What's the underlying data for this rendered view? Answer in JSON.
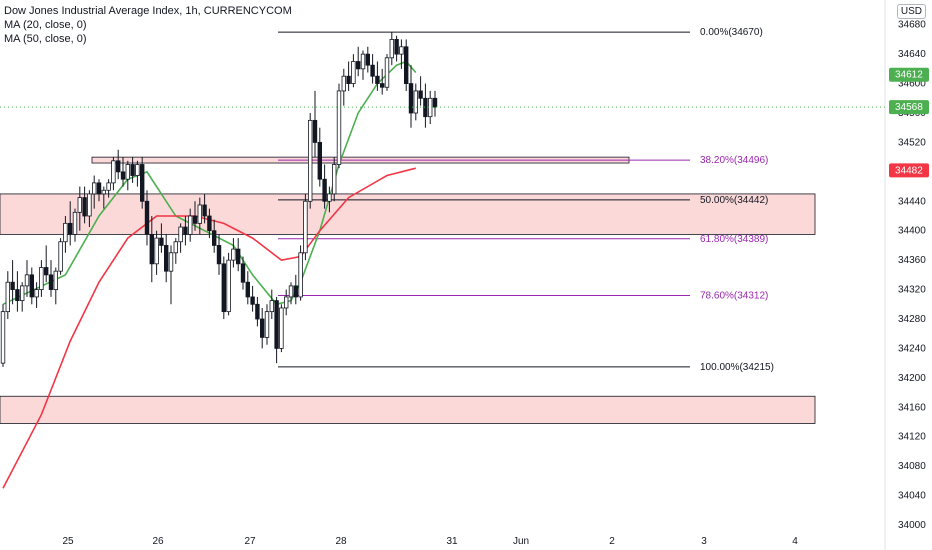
{
  "legend": {
    "title": "Dow Jones Industrial Average Index, 1h, CURRENCYCOM",
    "ma20": "MA (20, close, 0)",
    "ma50": "MA (50, close, 0)"
  },
  "currency": "USD",
  "colors": {
    "up": "#26a69a",
    "down": "#ef5350",
    "ma20": "#4caf50",
    "ma50": "#f23645",
    "zone_fill": "#fcd9d9",
    "fib_black": "#131722",
    "fib_purple": "#9c27b0",
    "last_price": "#4caf50",
    "ma50_tag": "#f23645"
  },
  "chart_data": {
    "type": "candlestick",
    "y_axis": {
      "min": 34000,
      "max": 34700,
      "ticks": [
        34000,
        34040,
        34080,
        34120,
        34160,
        34200,
        34240,
        34280,
        34320,
        34360,
        34400,
        34440,
        34480,
        34520,
        34560,
        34600,
        34640,
        34680
      ]
    },
    "x_axis": {
      "ticks": [
        "25",
        "26",
        "27",
        "28",
        "31",
        "Jun",
        "2",
        "3",
        "4"
      ]
    },
    "price_tags": [
      {
        "value": 34612,
        "label": "34612",
        "color": "#4caf50"
      },
      {
        "value": 34568,
        "label": "34568",
        "color": "#4caf50"
      },
      {
        "value": 34482,
        "label": "34482",
        "color": "#f23645"
      }
    ],
    "last_price": 34568,
    "fib_levels": [
      {
        "label": "0.00%(34670)",
        "value": 34670,
        "color": "#131722"
      },
      {
        "label": "38.20%(34496)",
        "value": 34496,
        "color": "#9c27b0"
      },
      {
        "label": "50.00%(34442)",
        "value": 34442,
        "color": "#131722"
      },
      {
        "label": "61.80%(34389)",
        "value": 34389,
        "color": "#9c27b0"
      },
      {
        "label": "78.60%(34312)",
        "value": 34312,
        "color": "#9c27b0"
      },
      {
        "label": "100.00%(34215)",
        "value": 34215,
        "color": "#131722"
      }
    ],
    "zones": [
      {
        "top": 34500,
        "bottom": 34492
      },
      {
        "top": 34450,
        "bottom": 34395
      },
      {
        "top": 34175,
        "bottom": 34138
      }
    ],
    "candles": [
      [
        34220,
        34300,
        34215,
        34290
      ],
      [
        34290,
        34345,
        34280,
        34330
      ],
      [
        34330,
        34360,
        34300,
        34320
      ],
      [
        34320,
        34345,
        34290,
        34305
      ],
      [
        34305,
        34330,
        34290,
        34325
      ],
      [
        34325,
        34360,
        34310,
        34340
      ],
      [
        34340,
        34350,
        34300,
        34310
      ],
      [
        34310,
        34330,
        34295,
        34320
      ],
      [
        34320,
        34360,
        34310,
        34350
      ],
      [
        34350,
        34380,
        34330,
        34340
      ],
      [
        34340,
        34360,
        34310,
        34320
      ],
      [
        34320,
        34350,
        34300,
        34345
      ],
      [
        34345,
        34390,
        34340,
        34385
      ],
      [
        34385,
        34420,
        34370,
        34410
      ],
      [
        34410,
        34440,
        34380,
        34395
      ],
      [
        34395,
        34430,
        34385,
        34425
      ],
      [
        34425,
        34460,
        34400,
        34445
      ],
      [
        34445,
        34460,
        34410,
        34420
      ],
      [
        34420,
        34455,
        34405,
        34450
      ],
      [
        34450,
        34475,
        34430,
        34465
      ],
      [
        34465,
        34470,
        34440,
        34450
      ],
      [
        34450,
        34460,
        34430,
        34455
      ],
      [
        34455,
        34470,
        34445,
        34465
      ],
      [
        34465,
        34500,
        34455,
        34495
      ],
      [
        34495,
        34510,
        34470,
        34480
      ],
      [
        34480,
        34500,
        34460,
        34470
      ],
      [
        34470,
        34495,
        34455,
        34490
      ],
      [
        34490,
        34500,
        34465,
        34475
      ],
      [
        34475,
        34495,
        34460,
        34490
      ],
      [
        34490,
        34500,
        34430,
        34440
      ],
      [
        34440,
        34455,
        34380,
        34395
      ],
      [
        34395,
        34420,
        34330,
        34355
      ],
      [
        34355,
        34400,
        34340,
        34390
      ],
      [
        34390,
        34410,
        34370,
        34380
      ],
      [
        34380,
        34395,
        34330,
        34345
      ],
      [
        34345,
        34380,
        34300,
        34370
      ],
      [
        34370,
        34390,
        34355,
        34385
      ],
      [
        34385,
        34410,
        34370,
        34405
      ],
      [
        34405,
        34420,
        34380,
        34395
      ],
      [
        34395,
        34430,
        34385,
        34420
      ],
      [
        34420,
        34440,
        34400,
        34410
      ],
      [
        34410,
        34445,
        34395,
        34435
      ],
      [
        34435,
        34450,
        34410,
        34420
      ],
      [
        34420,
        34430,
        34390,
        34400
      ],
      [
        34400,
        34415,
        34370,
        34380
      ],
      [
        34380,
        34395,
        34340,
        34355
      ],
      [
        34355,
        34365,
        34280,
        34290
      ],
      [
        34290,
        34370,
        34285,
        34360
      ],
      [
        34360,
        34390,
        34350,
        34375
      ],
      [
        34375,
        34390,
        34345,
        34355
      ],
      [
        34355,
        34365,
        34320,
        34330
      ],
      [
        34330,
        34345,
        34300,
        34310
      ],
      [
        34310,
        34325,
        34290,
        34300
      ],
      [
        34300,
        34310,
        34270,
        34280
      ],
      [
        34280,
        34295,
        34240,
        34255
      ],
      [
        34255,
        34300,
        34245,
        34290
      ],
      [
        34290,
        34320,
        34280,
        34305
      ],
      [
        34305,
        34310,
        34220,
        34240
      ],
      [
        34240,
        34300,
        34235,
        34295
      ],
      [
        34295,
        34320,
        34285,
        34310
      ],
      [
        34310,
        34330,
        34300,
        34325
      ],
      [
        34325,
        34340,
        34300,
        34310
      ],
      [
        34310,
        34380,
        34305,
        34370
      ],
      [
        34370,
        34450,
        34360,
        34440
      ],
      [
        34440,
        34560,
        34430,
        34550
      ],
      [
        34550,
        34590,
        34500,
        34520
      ],
      [
        34520,
        34540,
        34460,
        34470
      ],
      [
        34470,
        34490,
        34430,
        34440
      ],
      [
        34440,
        34460,
        34425,
        34450
      ],
      [
        34450,
        34500,
        34440,
        34490
      ],
      [
        34490,
        34600,
        34485,
        34590
      ],
      [
        34590,
        34620,
        34570,
        34610
      ],
      [
        34610,
        34630,
        34590,
        34600
      ],
      [
        34600,
        34640,
        34595,
        34630
      ],
      [
        34630,
        34650,
        34610,
        34620
      ],
      [
        34620,
        34645,
        34605,
        34640
      ],
      [
        34640,
        34650,
        34615,
        34625
      ],
      [
        34625,
        34640,
        34600,
        34610
      ],
      [
        34610,
        34630,
        34590,
        34600
      ],
      [
        34600,
        34620,
        34585,
        34595
      ],
      [
        34595,
        34640,
        34590,
        34635
      ],
      [
        34635,
        34670,
        34625,
        34660
      ],
      [
        34660,
        34665,
        34630,
        34640
      ],
      [
        34640,
        34660,
        34620,
        34650
      ],
      [
        34650,
        34660,
        34590,
        34600
      ],
      [
        34600,
        34625,
        34540,
        34560
      ],
      [
        34560,
        34600,
        34550,
        34590
      ],
      [
        34590,
        34610,
        34570,
        34580
      ],
      [
        34580,
        34600,
        34540,
        34555
      ],
      [
        34555,
        34590,
        34545,
        34580
      ],
      [
        34580,
        34590,
        34555,
        34568
      ]
    ],
    "ma20": [
      [
        0,
        34300
      ],
      [
        13,
        34340
      ],
      [
        20,
        34420
      ],
      [
        26,
        34470
      ],
      [
        30,
        34480
      ],
      [
        36,
        34420
      ],
      [
        42,
        34400
      ],
      [
        48,
        34380
      ],
      [
        52,
        34340
      ],
      [
        57,
        34300
      ],
      [
        60,
        34305
      ],
      [
        62,
        34330
      ],
      [
        66,
        34400
      ],
      [
        70,
        34490
      ],
      [
        74,
        34560
      ],
      [
        78,
        34600
      ],
      [
        82,
        34625
      ],
      [
        84,
        34630
      ],
      [
        86,
        34615
      ]
    ],
    "ma50": [
      [
        0,
        34050
      ],
      [
        8,
        34150
      ],
      [
        14,
        34250
      ],
      [
        20,
        34330
      ],
      [
        26,
        34390
      ],
      [
        32,
        34420
      ],
      [
        40,
        34420
      ],
      [
        46,
        34410
      ],
      [
        52,
        34390
      ],
      [
        58,
        34360
      ],
      [
        62,
        34365
      ],
      [
        66,
        34400
      ],
      [
        72,
        34445
      ],
      [
        80,
        34475
      ],
      [
        86,
        34485
      ]
    ]
  }
}
